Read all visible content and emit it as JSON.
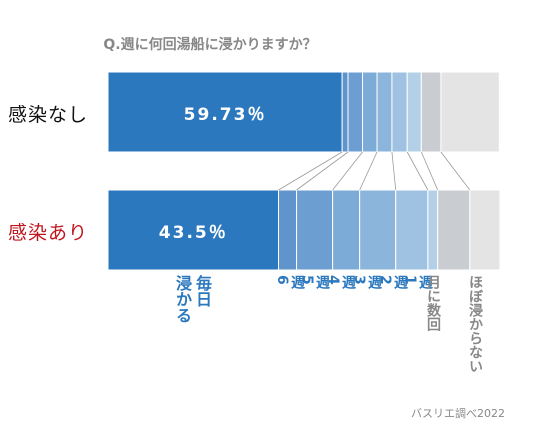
{
  "title": "Q.週に何回湯船に浸かりますか？",
  "source": "バスリエ調べ2022",
  "chart_data": {
    "type": "bar",
    "orientation": "horizontal",
    "stacked": "100%",
    "categories": [
      "毎日浸かる",
      "週6",
      "週5",
      "週4",
      "週3",
      "週2",
      "週1",
      "月に数回",
      "ほぼ浸からない"
    ],
    "category_labels": [
      "毎日\n浸かる",
      "週\n6",
      "週\n5",
      "週\n4",
      "週\n3",
      "週\n2",
      "週\n1",
      "月に数回",
      "ほぼ浸からない"
    ],
    "colors": [
      "#2c78be",
      "#5f95cc",
      "#6c9ed1",
      "#7dabd7",
      "#8cb5dc",
      "#9fc2e2",
      "#b4d0e9",
      "#c9cdd1",
      "#e4e4e4"
    ],
    "label_colors": [
      "#2c78be",
      "#2c78be",
      "#2c78be",
      "#2c78be",
      "#2c78be",
      "#2c78be",
      "#2c78be",
      "#888888",
      "#888888"
    ],
    "series": [
      {
        "name": "感染なし",
        "values": [
          59.73,
          1.5,
          3.7,
          3.7,
          3.8,
          3.9,
          3.6,
          5.0,
          14.9
        ],
        "value_label": "59.73％"
      },
      {
        "name": "感染あり",
        "values": [
          43.5,
          4.6,
          9.2,
          6.9,
          9.2,
          8.2,
          2.5,
          8.2,
          7.7
        ],
        "value_label": "43.5％"
      }
    ],
    "xlim": [
      0,
      100
    ]
  }
}
